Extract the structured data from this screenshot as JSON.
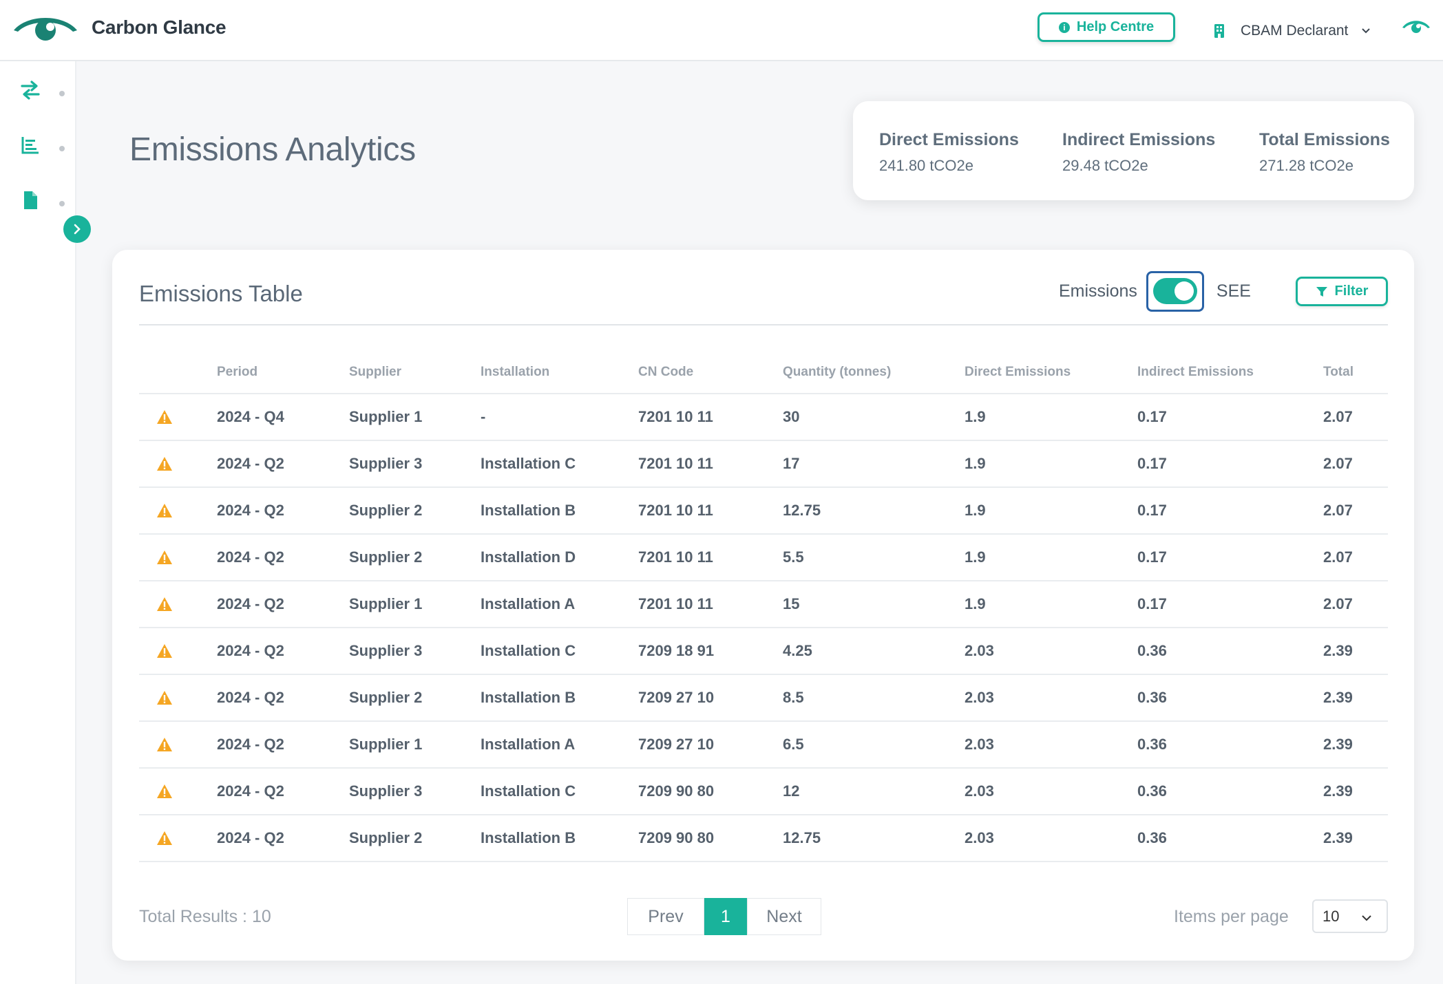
{
  "app": {
    "brand": "Carbon Glance",
    "colors": {
      "accent": "#19b39b",
      "dark_teal": "#1a8273",
      "focus_blue": "#2962a6"
    }
  },
  "header": {
    "help_label": "Help Centre",
    "help_icon": "info-circle-icon",
    "role_label": "CBAM Declarant",
    "role_icon": "building-icon"
  },
  "sidebar": {
    "items": [
      {
        "icon": "arrows-exchange-icon"
      },
      {
        "icon": "bar-chart-icon"
      },
      {
        "icon": "document-icon"
      }
    ],
    "expand_icon": "chevron-right-icon"
  },
  "page": {
    "title": "Emissions Analytics"
  },
  "summary": [
    {
      "label": "Direct Emissions",
      "value": "241.80 tCO2e"
    },
    {
      "label": "Indirect Emissions",
      "value": "29.48 tCO2e"
    },
    {
      "label": "Total Emissions",
      "value": "271.28 tCO2e"
    }
  ],
  "table_card": {
    "title": "Emissions Table",
    "toggle_left": "Emissions",
    "toggle_right": "SEE",
    "toggle_on": true,
    "filter_label": "Filter",
    "columns": [
      "",
      "Period",
      "Supplier",
      "Installation",
      "CN Code",
      "Quantity (tonnes)",
      "Direct Emissions",
      "Indirect Emissions",
      "Total"
    ],
    "rows": [
      {
        "period": "2024 - Q4",
        "supplier": "Supplier 1",
        "installation": "-",
        "cn": "7201 10 11",
        "qty": "30",
        "direct": "1.9",
        "indirect": "0.17",
        "total": "2.07"
      },
      {
        "period": "2024 - Q2",
        "supplier": "Supplier 3",
        "installation": "Installation C",
        "cn": "7201 10 11",
        "qty": "17",
        "direct": "1.9",
        "indirect": "0.17",
        "total": "2.07"
      },
      {
        "period": "2024 - Q2",
        "supplier": "Supplier 2",
        "installation": "Installation B",
        "cn": "7201 10 11",
        "qty": "12.75",
        "direct": "1.9",
        "indirect": "0.17",
        "total": "2.07"
      },
      {
        "period": "2024 - Q2",
        "supplier": "Supplier 2",
        "installation": "Installation D",
        "cn": "7201 10 11",
        "qty": "5.5",
        "direct": "1.9",
        "indirect": "0.17",
        "total": "2.07"
      },
      {
        "period": "2024 - Q2",
        "supplier": "Supplier 1",
        "installation": "Installation A",
        "cn": "7201 10 11",
        "qty": "15",
        "direct": "1.9",
        "indirect": "0.17",
        "total": "2.07"
      },
      {
        "period": "2024 - Q2",
        "supplier": "Supplier 3",
        "installation": "Installation C",
        "cn": "7209 18 91",
        "qty": "4.25",
        "direct": "2.03",
        "indirect": "0.36",
        "total": "2.39"
      },
      {
        "period": "2024 - Q2",
        "supplier": "Supplier 2",
        "installation": "Installation B",
        "cn": "7209 27 10",
        "qty": "8.5",
        "direct": "2.03",
        "indirect": "0.36",
        "total": "2.39"
      },
      {
        "period": "2024 - Q2",
        "supplier": "Supplier 1",
        "installation": "Installation A",
        "cn": "7209 27 10",
        "qty": "6.5",
        "direct": "2.03",
        "indirect": "0.36",
        "total": "2.39"
      },
      {
        "period": "2024 - Q2",
        "supplier": "Supplier 3",
        "installation": "Installation C",
        "cn": "7209 90 80",
        "qty": "12",
        "direct": "2.03",
        "indirect": "0.36",
        "total": "2.39"
      },
      {
        "period": "2024 - Q2",
        "supplier": "Supplier 2",
        "installation": "Installation B",
        "cn": "7209 90 80",
        "qty": "12.75",
        "direct": "2.03",
        "indirect": "0.36",
        "total": "2.39"
      }
    ],
    "row_icon": "warning-triangle-icon"
  },
  "footer": {
    "total_results": "Total Results : 10",
    "prev_label": "Prev",
    "current_page": "1",
    "next_label": "Next",
    "items_per_page_label": "Items per page",
    "items_per_page_value": "10"
  }
}
